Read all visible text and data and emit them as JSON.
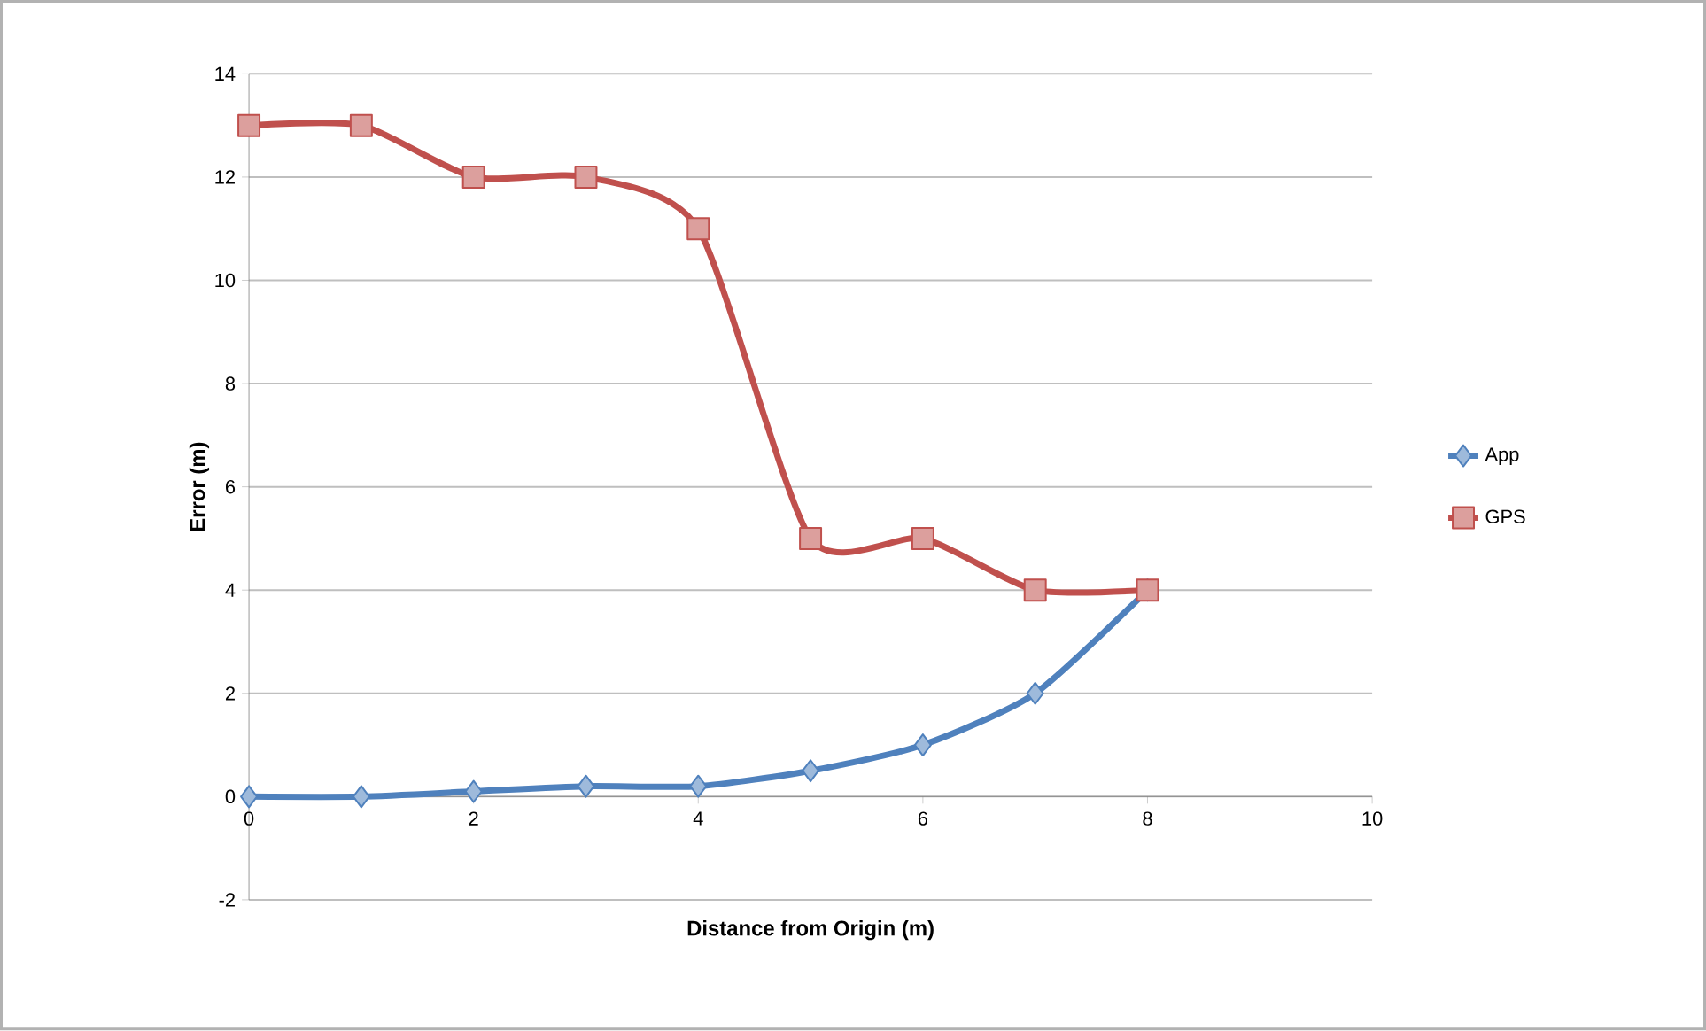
{
  "chart_data": {
    "type": "line",
    "xlabel": "Distance from Origin (m)",
    "ylabel": "Error (m)",
    "x": [
      0,
      1,
      2,
      3,
      4,
      5,
      6,
      7,
      8
    ],
    "series": [
      {
        "name": "App",
        "color": "#4f81bd",
        "marker": "diamond",
        "values": [
          0,
          0,
          0.1,
          0.2,
          0.2,
          0.5,
          1,
          2,
          4
        ]
      },
      {
        "name": "GPS",
        "color": "#c0504d",
        "marker": "square",
        "values": [
          13,
          13,
          12,
          12,
          11,
          5,
          5,
          4,
          4
        ]
      }
    ],
    "xlim": [
      0,
      10
    ],
    "xticks": [
      0,
      2,
      4,
      6,
      8,
      10
    ],
    "ylim": [
      -2,
      14
    ],
    "yticks": [
      -2,
      0,
      2,
      4,
      6,
      8,
      10,
      12,
      14
    ],
    "grid": "y",
    "legend": "right",
    "line_style": "solid"
  }
}
